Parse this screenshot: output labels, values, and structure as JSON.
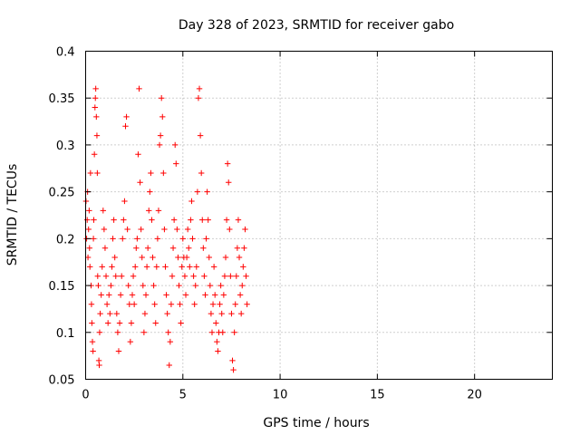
{
  "chart_data": {
    "type": "scatter",
    "title": "Day 328 of 2023, SRMTID for receiver gabo",
    "xlabel": "GPS time / hours",
    "ylabel": "SRMTID / TECUs",
    "xlim": [
      0,
      24
    ],
    "ylim": [
      0.05,
      0.4
    ],
    "xticks": [
      0,
      5,
      10,
      15,
      20
    ],
    "yticks": [
      0.05,
      0.1,
      0.15,
      0.2,
      0.25,
      0.3,
      0.35,
      0.4
    ],
    "xtick_labels": [
      "0",
      "5",
      "10",
      "15",
      "20"
    ],
    "ytick_labels": [
      "0.05",
      "0.1",
      "0.15",
      "0.2",
      "0.25",
      "0.3",
      "0.35",
      "0.4"
    ],
    "grid": true,
    "marker": "+",
    "color": "#ff0000",
    "series": [
      {
        "points": [
          [
            0.02,
            0.24
          ],
          [
            0.05,
            0.2
          ],
          [
            0.08,
            0.22
          ],
          [
            0.1,
            0.25
          ],
          [
            0.12,
            0.18
          ],
          [
            0.15,
            0.21
          ],
          [
            0.18,
            0.23
          ],
          [
            0.2,
            0.19
          ],
          [
            0.22,
            0.17
          ],
          [
            0.25,
            0.27
          ],
          [
            0.28,
            0.15
          ],
          [
            0.3,
            0.13
          ],
          [
            0.32,
            0.11
          ],
          [
            0.35,
            0.09
          ],
          [
            0.38,
            0.08
          ],
          [
            0.4,
            0.2
          ],
          [
            0.42,
            0.22
          ],
          [
            0.45,
            0.29
          ],
          [
            0.48,
            0.34
          ],
          [
            0.5,
            0.35
          ],
          [
            0.52,
            0.36
          ],
          [
            0.55,
            0.33
          ],
          [
            0.58,
            0.31
          ],
          [
            0.6,
            0.27
          ],
          [
            0.62,
            0.16
          ],
          [
            0.65,
            0.15
          ],
          [
            0.68,
            0.07
          ],
          [
            0.7,
            0.065
          ],
          [
            0.72,
            0.1
          ],
          [
            0.75,
            0.12
          ],
          [
            0.8,
            0.14
          ],
          [
            0.85,
            0.17
          ],
          [
            0.9,
            0.23
          ],
          [
            0.95,
            0.21
          ],
          [
            1.0,
            0.19
          ],
          [
            1.05,
            0.16
          ],
          [
            1.1,
            0.13
          ],
          [
            1.15,
            0.11
          ],
          [
            1.2,
            0.14
          ],
          [
            1.25,
            0.12
          ],
          [
            1.3,
            0.15
          ],
          [
            1.35,
            0.17
          ],
          [
            1.4,
            0.2
          ],
          [
            1.45,
            0.22
          ],
          [
            1.5,
            0.18
          ],
          [
            1.55,
            0.16
          ],
          [
            1.6,
            0.12
          ],
          [
            1.65,
            0.1
          ],
          [
            1.7,
            0.08
          ],
          [
            1.75,
            0.11
          ],
          [
            1.8,
            0.14
          ],
          [
            1.85,
            0.16
          ],
          [
            1.9,
            0.2
          ],
          [
            1.95,
            0.22
          ],
          [
            2.0,
            0.24
          ],
          [
            2.05,
            0.32
          ],
          [
            2.1,
            0.33
          ],
          [
            2.15,
            0.21
          ],
          [
            2.2,
            0.15
          ],
          [
            2.25,
            0.13
          ],
          [
            2.3,
            0.09
          ],
          [
            2.35,
            0.11
          ],
          [
            2.4,
            0.14
          ],
          [
            2.45,
            0.16
          ],
          [
            2.5,
            0.13
          ],
          [
            2.55,
            0.17
          ],
          [
            2.6,
            0.19
          ],
          [
            2.65,
            0.2
          ],
          [
            2.7,
            0.29
          ],
          [
            2.75,
            0.36
          ],
          [
            2.8,
            0.26
          ],
          [
            2.85,
            0.21
          ],
          [
            2.9,
            0.18
          ],
          [
            2.95,
            0.15
          ],
          [
            3.0,
            0.1
          ],
          [
            3.05,
            0.12
          ],
          [
            3.1,
            0.14
          ],
          [
            3.15,
            0.17
          ],
          [
            3.2,
            0.19
          ],
          [
            3.25,
            0.23
          ],
          [
            3.3,
            0.25
          ],
          [
            3.35,
            0.27
          ],
          [
            3.4,
            0.22
          ],
          [
            3.45,
            0.18
          ],
          [
            3.5,
            0.15
          ],
          [
            3.55,
            0.13
          ],
          [
            3.6,
            0.11
          ],
          [
            3.65,
            0.17
          ],
          [
            3.7,
            0.2
          ],
          [
            3.75,
            0.23
          ],
          [
            3.8,
            0.3
          ],
          [
            3.85,
            0.31
          ],
          [
            3.9,
            0.35
          ],
          [
            3.95,
            0.33
          ],
          [
            4.0,
            0.27
          ],
          [
            4.05,
            0.21
          ],
          [
            4.1,
            0.17
          ],
          [
            4.15,
            0.14
          ],
          [
            4.2,
            0.12
          ],
          [
            4.25,
            0.1
          ],
          [
            4.3,
            0.065
          ],
          [
            4.35,
            0.09
          ],
          [
            4.4,
            0.13
          ],
          [
            4.45,
            0.16
          ],
          [
            4.5,
            0.19
          ],
          [
            4.55,
            0.22
          ],
          [
            4.6,
            0.3
          ],
          [
            4.65,
            0.28
          ],
          [
            4.7,
            0.21
          ],
          [
            4.75,
            0.18
          ],
          [
            4.8,
            0.15
          ],
          [
            4.85,
            0.13
          ],
          [
            4.9,
            0.11
          ],
          [
            4.95,
            0.17
          ],
          [
            5.0,
            0.2
          ],
          [
            5.05,
            0.18
          ],
          [
            5.1,
            0.16
          ],
          [
            5.15,
            0.14
          ],
          [
            5.2,
            0.18
          ],
          [
            5.25,
            0.21
          ],
          [
            5.3,
            0.19
          ],
          [
            5.35,
            0.17
          ],
          [
            5.4,
            0.22
          ],
          [
            5.45,
            0.24
          ],
          [
            5.5,
            0.2
          ],
          [
            5.55,
            0.16
          ],
          [
            5.6,
            0.13
          ],
          [
            5.65,
            0.15
          ],
          [
            5.7,
            0.17
          ],
          [
            5.75,
            0.25
          ],
          [
            5.8,
            0.35
          ],
          [
            5.85,
            0.36
          ],
          [
            5.9,
            0.31
          ],
          [
            5.95,
            0.27
          ],
          [
            6.0,
            0.22
          ],
          [
            6.05,
            0.19
          ],
          [
            6.1,
            0.16
          ],
          [
            6.15,
            0.14
          ],
          [
            6.2,
            0.2
          ],
          [
            6.25,
            0.25
          ],
          [
            6.3,
            0.22
          ],
          [
            6.35,
            0.18
          ],
          [
            6.4,
            0.15
          ],
          [
            6.45,
            0.12
          ],
          [
            6.5,
            0.1
          ],
          [
            6.55,
            0.13
          ],
          [
            6.6,
            0.17
          ],
          [
            6.65,
            0.14
          ],
          [
            6.7,
            0.11
          ],
          [
            6.75,
            0.09
          ],
          [
            6.8,
            0.08
          ],
          [
            6.85,
            0.1
          ],
          [
            6.9,
            0.13
          ],
          [
            6.95,
            0.15
          ],
          [
            7.0,
            0.12
          ],
          [
            7.05,
            0.1
          ],
          [
            7.1,
            0.14
          ],
          [
            7.15,
            0.16
          ],
          [
            7.2,
            0.18
          ],
          [
            7.25,
            0.22
          ],
          [
            7.3,
            0.28
          ],
          [
            7.35,
            0.26
          ],
          [
            7.4,
            0.21
          ],
          [
            7.45,
            0.16
          ],
          [
            7.5,
            0.12
          ],
          [
            7.55,
            0.07
          ],
          [
            7.6,
            0.06
          ],
          [
            7.65,
            0.1
          ],
          [
            7.7,
            0.13
          ],
          [
            7.75,
            0.16
          ],
          [
            7.8,
            0.19
          ],
          [
            7.85,
            0.22
          ],
          [
            7.9,
            0.18
          ],
          [
            7.95,
            0.14
          ],
          [
            8.0,
            0.12
          ],
          [
            8.05,
            0.15
          ],
          [
            8.1,
            0.17
          ],
          [
            8.15,
            0.19
          ],
          [
            8.2,
            0.21
          ],
          [
            8.25,
            0.16
          ],
          [
            8.3,
            0.13
          ]
        ]
      }
    ]
  }
}
